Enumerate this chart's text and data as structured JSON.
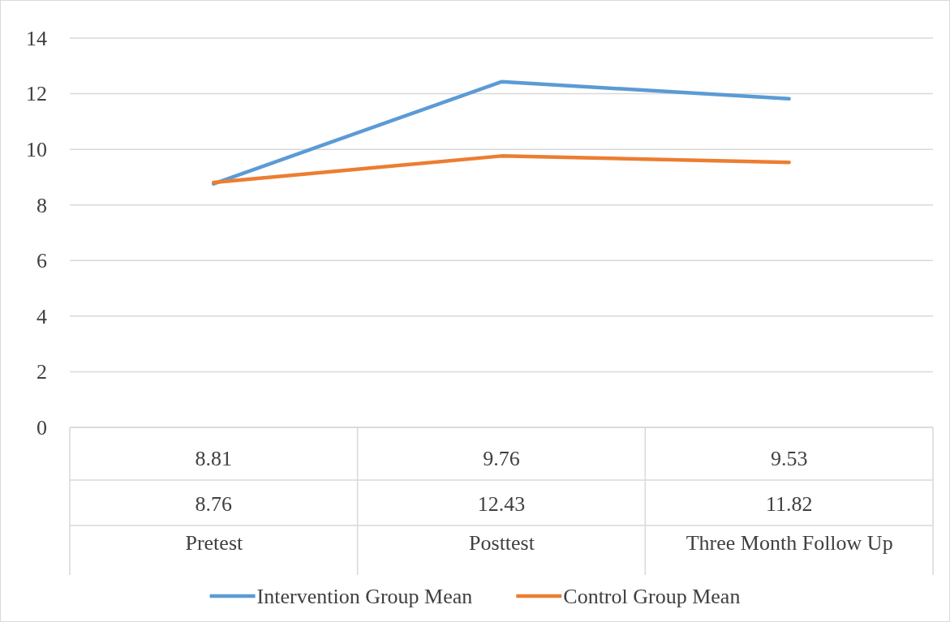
{
  "chart_data": {
    "type": "line",
    "categories": [
      "Pretest",
      "Posttest",
      "Three Month Follow Up"
    ],
    "series": [
      {
        "name": "Intervention Group Mean",
        "color": "#5b9bd5",
        "values": [
          8.76,
          12.43,
          11.82
        ]
      },
      {
        "name": "Control Group Mean",
        "color": "#ed7d31",
        "values": [
          8.81,
          9.76,
          9.53
        ]
      }
    ],
    "ylim": [
      0,
      14
    ],
    "yticks": [
      0,
      2,
      4,
      6,
      8,
      10,
      12,
      14
    ],
    "grid": "y",
    "legend": "bottom",
    "data_labels": true,
    "marker": "none",
    "line_style": "solid"
  }
}
